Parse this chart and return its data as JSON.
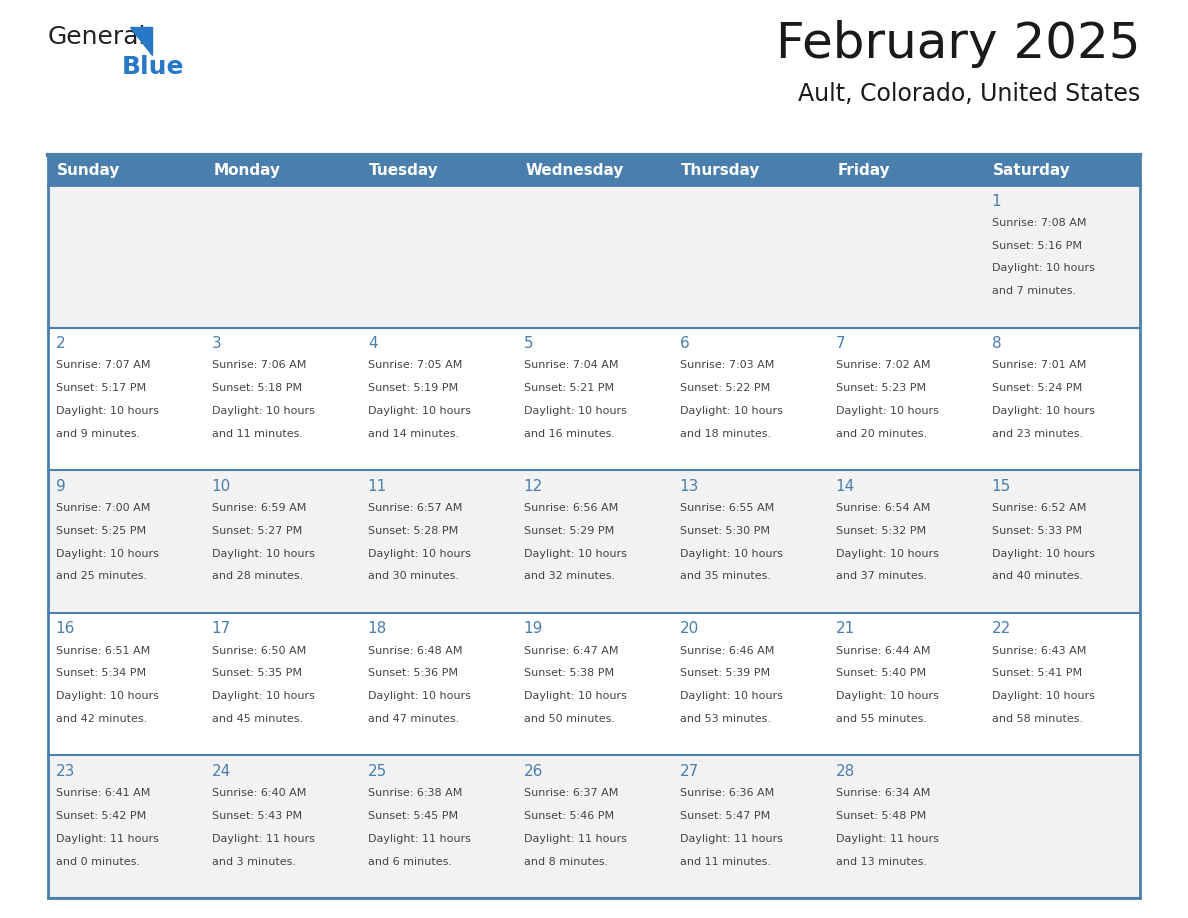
{
  "title": "February 2025",
  "subtitle": "Ault, Colorado, United States",
  "header_bg_color": "#4a7ead",
  "header_text_color": "#ffffff",
  "cell_bg_even": "#f2f2f2",
  "cell_bg_odd": "#ffffff",
  "day_number_color": "#4a7ead",
  "text_color": "#444444",
  "border_color": "#4a7ead",
  "line_color": "#4a7ead",
  "days_of_week": [
    "Sunday",
    "Monday",
    "Tuesday",
    "Wednesday",
    "Thursday",
    "Friday",
    "Saturday"
  ],
  "calendar_data": [
    [
      null,
      null,
      null,
      null,
      null,
      null,
      {
        "day": "1",
        "sunrise": "7:08 AM",
        "sunset": "5:16 PM",
        "daylight_h": "10",
        "daylight_m": "7"
      }
    ],
    [
      {
        "day": "2",
        "sunrise": "7:07 AM",
        "sunset": "5:17 PM",
        "daylight_h": "10",
        "daylight_m": "9"
      },
      {
        "day": "3",
        "sunrise": "7:06 AM",
        "sunset": "5:18 PM",
        "daylight_h": "10",
        "daylight_m": "11"
      },
      {
        "day": "4",
        "sunrise": "7:05 AM",
        "sunset": "5:19 PM",
        "daylight_h": "10",
        "daylight_m": "14"
      },
      {
        "day": "5",
        "sunrise": "7:04 AM",
        "sunset": "5:21 PM",
        "daylight_h": "10",
        "daylight_m": "16"
      },
      {
        "day": "6",
        "sunrise": "7:03 AM",
        "sunset": "5:22 PM",
        "daylight_h": "10",
        "daylight_m": "18"
      },
      {
        "day": "7",
        "sunrise": "7:02 AM",
        "sunset": "5:23 PM",
        "daylight_h": "10",
        "daylight_m": "20"
      },
      {
        "day": "8",
        "sunrise": "7:01 AM",
        "sunset": "5:24 PM",
        "daylight_h": "10",
        "daylight_m": "23"
      }
    ],
    [
      {
        "day": "9",
        "sunrise": "7:00 AM",
        "sunset": "5:25 PM",
        "daylight_h": "10",
        "daylight_m": "25"
      },
      {
        "day": "10",
        "sunrise": "6:59 AM",
        "sunset": "5:27 PM",
        "daylight_h": "10",
        "daylight_m": "28"
      },
      {
        "day": "11",
        "sunrise": "6:57 AM",
        "sunset": "5:28 PM",
        "daylight_h": "10",
        "daylight_m": "30"
      },
      {
        "day": "12",
        "sunrise": "6:56 AM",
        "sunset": "5:29 PM",
        "daylight_h": "10",
        "daylight_m": "32"
      },
      {
        "day": "13",
        "sunrise": "6:55 AM",
        "sunset": "5:30 PM",
        "daylight_h": "10",
        "daylight_m": "35"
      },
      {
        "day": "14",
        "sunrise": "6:54 AM",
        "sunset": "5:32 PM",
        "daylight_h": "10",
        "daylight_m": "37"
      },
      {
        "day": "15",
        "sunrise": "6:52 AM",
        "sunset": "5:33 PM",
        "daylight_h": "10",
        "daylight_m": "40"
      }
    ],
    [
      {
        "day": "16",
        "sunrise": "6:51 AM",
        "sunset": "5:34 PM",
        "daylight_h": "10",
        "daylight_m": "42"
      },
      {
        "day": "17",
        "sunrise": "6:50 AM",
        "sunset": "5:35 PM",
        "daylight_h": "10",
        "daylight_m": "45"
      },
      {
        "day": "18",
        "sunrise": "6:48 AM",
        "sunset": "5:36 PM",
        "daylight_h": "10",
        "daylight_m": "47"
      },
      {
        "day": "19",
        "sunrise": "6:47 AM",
        "sunset": "5:38 PM",
        "daylight_h": "10",
        "daylight_m": "50"
      },
      {
        "day": "20",
        "sunrise": "6:46 AM",
        "sunset": "5:39 PM",
        "daylight_h": "10",
        "daylight_m": "53"
      },
      {
        "day": "21",
        "sunrise": "6:44 AM",
        "sunset": "5:40 PM",
        "daylight_h": "10",
        "daylight_m": "55"
      },
      {
        "day": "22",
        "sunrise": "6:43 AM",
        "sunset": "5:41 PM",
        "daylight_h": "10",
        "daylight_m": "58"
      }
    ],
    [
      {
        "day": "23",
        "sunrise": "6:41 AM",
        "sunset": "5:42 PM",
        "daylight_h": "11",
        "daylight_m": "0"
      },
      {
        "day": "24",
        "sunrise": "6:40 AM",
        "sunset": "5:43 PM",
        "daylight_h": "11",
        "daylight_m": "3"
      },
      {
        "day": "25",
        "sunrise": "6:38 AM",
        "sunset": "5:45 PM",
        "daylight_h": "11",
        "daylight_m": "6"
      },
      {
        "day": "26",
        "sunrise": "6:37 AM",
        "sunset": "5:46 PM",
        "daylight_h": "11",
        "daylight_m": "8"
      },
      {
        "day": "27",
        "sunrise": "6:36 AM",
        "sunset": "5:47 PM",
        "daylight_h": "11",
        "daylight_m": "11"
      },
      {
        "day": "28",
        "sunrise": "6:34 AM",
        "sunset": "5:48 PM",
        "daylight_h": "11",
        "daylight_m": "13"
      },
      null
    ]
  ],
  "title_fontsize": 36,
  "subtitle_fontsize": 17,
  "day_header_fontsize": 11,
  "day_num_fontsize": 11,
  "cell_text_fontsize": 8
}
